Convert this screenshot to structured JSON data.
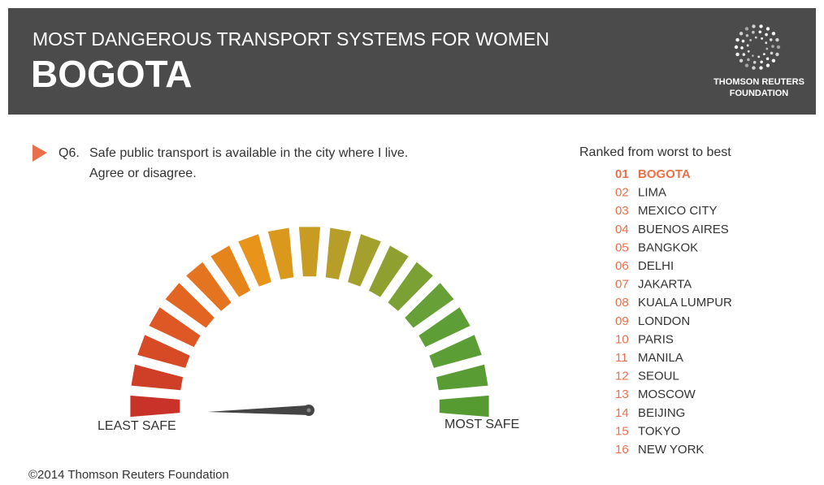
{
  "header": {
    "subtitle": "MOST DANGEROUS TRANSPORT SYSTEMS FOR WOMEN",
    "title": "BOGOTA"
  },
  "logo": {
    "lines": [
      "THOMSON REUTERS",
      "FOUNDATION"
    ]
  },
  "question": {
    "number": "Q6.",
    "lines": [
      "Safe public transport is available in the city where I live.",
      "Agree or disagree."
    ]
  },
  "gauge": {
    "min_label": "LEAST SAFE",
    "max_label": "MOST SAFE"
  },
  "ranking": {
    "heading": "Ranked from worst to best",
    "items": [
      {
        "rank": "01",
        "city": "BOGOTA"
      },
      {
        "rank": "02",
        "city": "LIMA"
      },
      {
        "rank": "03",
        "city": "MEXICO CITY"
      },
      {
        "rank": "04",
        "city": "BUENOS AIRES"
      },
      {
        "rank": "05",
        "city": "BANGKOK"
      },
      {
        "rank": "06",
        "city": "DELHI"
      },
      {
        "rank": "07",
        "city": "JAKARTA"
      },
      {
        "rank": "08",
        "city": "KUALA LUMPUR"
      },
      {
        "rank": "09",
        "city": "LONDON"
      },
      {
        "rank": "10",
        "city": "PARIS"
      },
      {
        "rank": "11",
        "city": "MANILA"
      },
      {
        "rank": "12",
        "city": "SEOUL"
      },
      {
        "rank": "13",
        "city": "MOSCOW"
      },
      {
        "rank": "14",
        "city": "BEIJING"
      },
      {
        "rank": "15",
        "city": "TOKYO"
      },
      {
        "rank": "16",
        "city": "NEW YORK"
      }
    ]
  },
  "footer": "©2014 Thomson Reuters Foundation"
}
